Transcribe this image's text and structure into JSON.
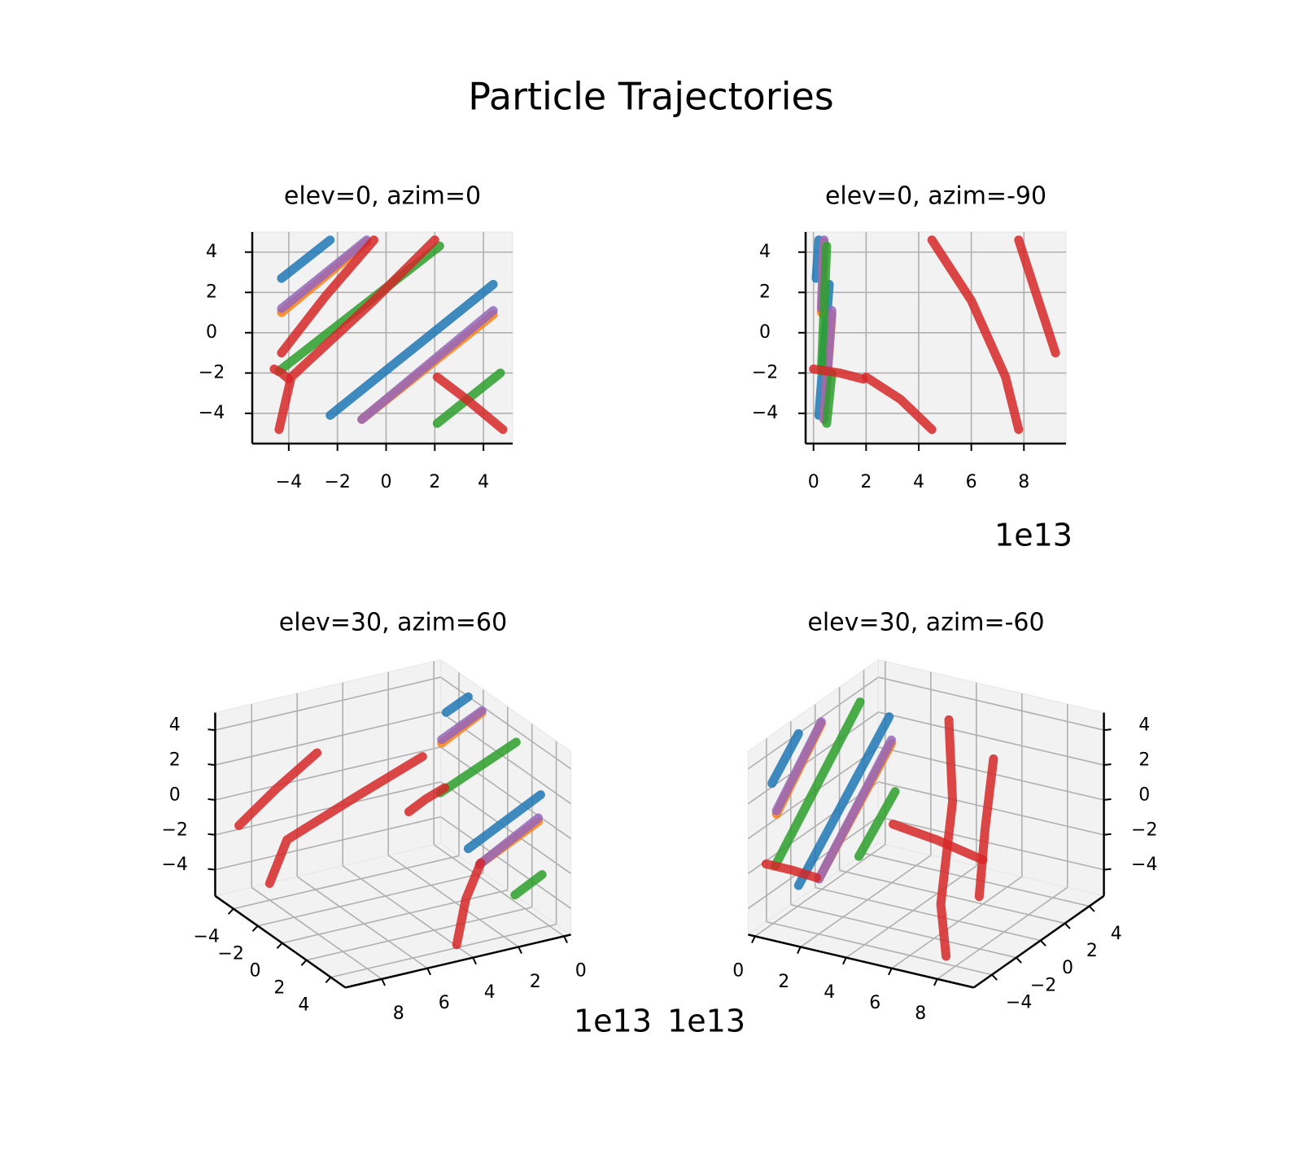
{
  "chart_data": {
    "type": "line3d",
    "title": "Particle Trajectories",
    "x_offset_label": "1e13",
    "views": [
      {
        "title": "elev=0, azim=0",
        "elev": 0,
        "azim": 0
      },
      {
        "title": "elev=0, azim=-90",
        "elev": 0,
        "azim": -90
      },
      {
        "title": "elev=30, azim=60",
        "elev": 30,
        "azim": 60
      },
      {
        "title": "elev=30, azim=-60",
        "elev": 30,
        "azim": -60
      }
    ],
    "xlim": [
      -0.3,
      9.6
    ],
    "ylim": [
      -5.5,
      5.2
    ],
    "zlim": [
      -5.5,
      5.0
    ],
    "xticks": [
      0,
      2,
      4,
      6,
      8
    ],
    "yticks": [
      {
        "value": -4,
        "label": "−4"
      },
      {
        "value": -2,
        "label": "−2"
      },
      0,
      2,
      4
    ],
    "zticks": [
      {
        "value": -4,
        "label": "−4"
      },
      {
        "value": -2,
        "label": "−2"
      },
      0,
      2,
      4
    ],
    "grid": true,
    "series": [
      {
        "color": "#1f77b4",
        "segments": [
          {
            "x": [
              0.1,
              0.2
            ],
            "y": [
              -4.3,
              -2.3
            ],
            "z": [
              2.7,
              4.6
            ]
          },
          {
            "x": [
              0.2,
              0.6
            ],
            "y": [
              -2.3,
              4.4
            ],
            "z": [
              -4.1,
              2.4
            ]
          }
        ]
      },
      {
        "color": "#ff7f0e",
        "segments": [
          {
            "x": [
              0.3,
              0.4
            ],
            "y": [
              -4.3,
              -0.8
            ],
            "z": [
              1.0,
              4.5
            ]
          },
          {
            "x": [
              0.4,
              0.7
            ],
            "y": [
              -1.0,
              4.4
            ],
            "z": [
              -4.3,
              0.9
            ]
          }
        ]
      },
      {
        "color": "#9467bd",
        "segments": [
          {
            "x": [
              0.3,
              0.4
            ],
            "y": [
              -4.3,
              -0.8
            ],
            "z": [
              1.2,
              4.6
            ]
          },
          {
            "x": [
              0.4,
              0.7
            ],
            "y": [
              -1.0,
              4.4
            ],
            "z": [
              -4.3,
              1.1
            ]
          }
        ]
      },
      {
        "color": "#2ca02c",
        "segments": [
          {
            "x": [
              0.3,
              0.5
            ],
            "y": [
              -4.4,
              2.2
            ],
            "z": [
              -1.9,
              4.3
            ]
          },
          {
            "x": [
              0.5,
              0.7
            ],
            "y": [
              2.1,
              4.7
            ],
            "z": [
              -4.5,
              -2.0
            ]
          }
        ]
      },
      {
        "color": "#d62728",
        "segments": [
          {
            "x": [
              0,
              1,
              1.9
            ],
            "y": [
              -4.6,
              -4.3,
              -4.0
            ],
            "z": [
              -1.8,
              -2.0,
              -2.3
            ]
          },
          {
            "x": [
              2,
              3.3,
              4.5
            ],
            "y": [
              2.1,
              3.3,
              4.8
            ],
            "z": [
              -2.2,
              -3.3,
              -4.8
            ]
          },
          {
            "x": [
              4.5,
              6.0,
              7.3,
              7.8
            ],
            "y": [
              2.0,
              -0.5,
              -3.9,
              -4.4
            ],
            "z": [
              4.6,
              1.6,
              -2.2,
              -4.8
            ]
          },
          {
            "x": [
              7.8,
              8.5,
              9.2
            ],
            "y": [
              -0.5,
              -2.5,
              -4.3
            ],
            "z": [
              4.6,
              1.8,
              -1.0
            ]
          }
        ]
      }
    ]
  }
}
